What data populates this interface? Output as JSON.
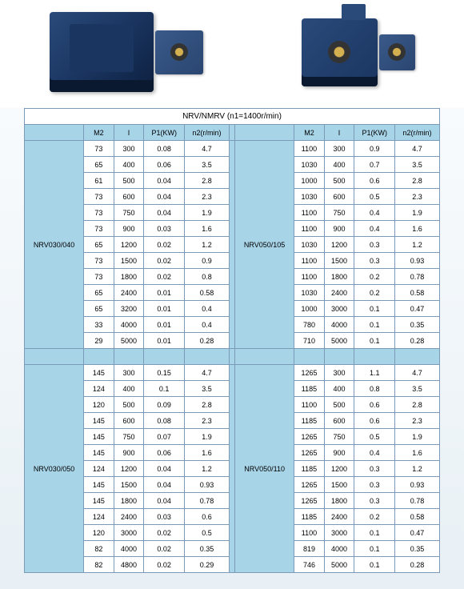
{
  "title": "NRV/NMRV  (n1=1400r/min)",
  "headers": {
    "m2": "M2",
    "i": "I",
    "p1": "P1(KW)",
    "n2": "n2(r/min)"
  },
  "sections": [
    {
      "left_model": "NRV030/040",
      "right_model": "NRV050/105",
      "left_rows": [
        [
          "73",
          "300",
          "0.08",
          "4.7"
        ],
        [
          "65",
          "400",
          "0.06",
          "3.5"
        ],
        [
          "61",
          "500",
          "0.04",
          "2.8"
        ],
        [
          "73",
          "600",
          "0.04",
          "2.3"
        ],
        [
          "73",
          "750",
          "0.04",
          "1.9"
        ],
        [
          "73",
          "900",
          "0.03",
          "1.6"
        ],
        [
          "65",
          "1200",
          "0.02",
          "1.2"
        ],
        [
          "73",
          "1500",
          "0.02",
          "0.9"
        ],
        [
          "73",
          "1800",
          "0.02",
          "0.8"
        ],
        [
          "65",
          "2400",
          "0.01",
          "0.58"
        ],
        [
          "65",
          "3200",
          "0.01",
          "0.4"
        ],
        [
          "33",
          "4000",
          "0.01",
          "0.4"
        ],
        [
          "29",
          "5000",
          "0.01",
          "0.28"
        ]
      ],
      "right_rows": [
        [
          "1100",
          "300",
          "0.9",
          "4.7"
        ],
        [
          "1030",
          "400",
          "0.7",
          "3.5"
        ],
        [
          "1000",
          "500",
          "0.6",
          "2.8"
        ],
        [
          "1030",
          "600",
          "0.5",
          "2.3"
        ],
        [
          "1100",
          "750",
          "0.4",
          "1.9"
        ],
        [
          "1100",
          "900",
          "0.4",
          "1.6"
        ],
        [
          "1030",
          "1200",
          "0.3",
          "1.2"
        ],
        [
          "1100",
          "1500",
          "0.3",
          "0.93"
        ],
        [
          "1100",
          "1800",
          "0.2",
          "0.78"
        ],
        [
          "1030",
          "2400",
          "0.2",
          "0.58"
        ],
        [
          "1000",
          "3000",
          "0.1",
          "0.47"
        ],
        [
          "780",
          "4000",
          "0.1",
          "0.35"
        ],
        [
          "710",
          "5000",
          "0.1",
          "0.28"
        ]
      ]
    },
    {
      "left_model": "NRV030/050",
      "right_model": "NRV050/110",
      "left_rows": [
        [
          "145",
          "300",
          "0.15",
          "4.7"
        ],
        [
          "124",
          "400",
          "0.1",
          "3.5"
        ],
        [
          "120",
          "500",
          "0.09",
          "2.8"
        ],
        [
          "145",
          "600",
          "0.08",
          "2.3"
        ],
        [
          "145",
          "750",
          "0.07",
          "1.9"
        ],
        [
          "145",
          "900",
          "0.06",
          "1.6"
        ],
        [
          "124",
          "1200",
          "0.04",
          "1.2"
        ],
        [
          "145",
          "1500",
          "0.04",
          "0.93"
        ],
        [
          "145",
          "1800",
          "0.04",
          "0.78"
        ],
        [
          "124",
          "2400",
          "0.03",
          "0.6"
        ],
        [
          "120",
          "3000",
          "0.02",
          "0.5"
        ],
        [
          "82",
          "4000",
          "0.02",
          "0.35"
        ],
        [
          "82",
          "4800",
          "0.02",
          "0.29"
        ]
      ],
      "right_rows": [
        [
          "1265",
          "300",
          "1.1",
          "4.7"
        ],
        [
          "1185",
          "400",
          "0.8",
          "3.5"
        ],
        [
          "1100",
          "500",
          "0.6",
          "2.8"
        ],
        [
          "1185",
          "600",
          "0.6",
          "2.3"
        ],
        [
          "1265",
          "750",
          "0.5",
          "1.9"
        ],
        [
          "1265",
          "900",
          "0.4",
          "1.6"
        ],
        [
          "1185",
          "1200",
          "0.3",
          "1.2"
        ],
        [
          "1265",
          "1500",
          "0.3",
          "0.93"
        ],
        [
          "1265",
          "1800",
          "0.3",
          "0.78"
        ],
        [
          "1185",
          "2400",
          "0.2",
          "0.58"
        ],
        [
          "1100",
          "3000",
          "0.1",
          "0.47"
        ],
        [
          "819",
          "4000",
          "0.1",
          "0.35"
        ],
        [
          "746",
          "5000",
          "0.1",
          "0.28"
        ]
      ]
    }
  ]
}
